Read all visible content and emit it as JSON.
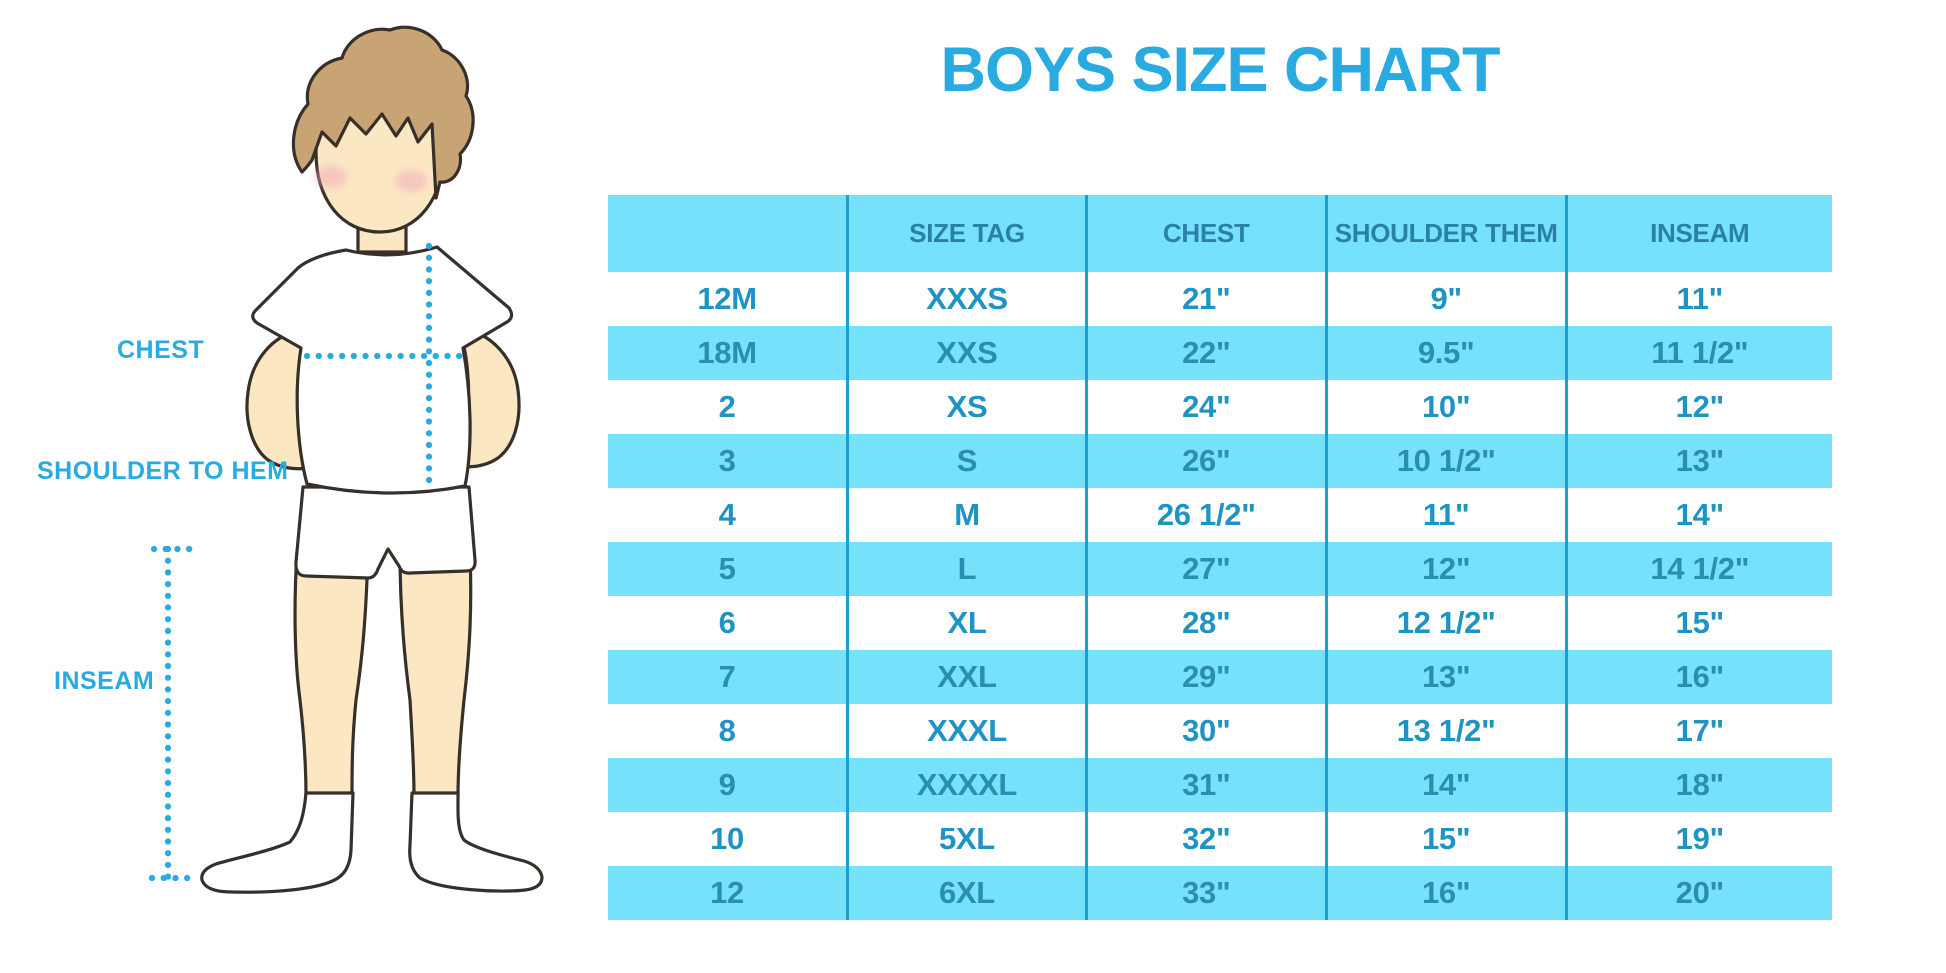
{
  "title": "BOYS SIZE CHART",
  "figure_labels": {
    "chest": "CHEST",
    "shoulder_to_hem": "SHOULDER TO HEM",
    "inseam": "INSEAM"
  },
  "colors": {
    "accent_blue": "#29ABE2",
    "stripe_blue": "#76E1FA",
    "divider_blue": "#1B9FD3",
    "header_text": "#2A80A6",
    "cell_text": "#2093C5",
    "cell_text_stripe": "#2B8DB0",
    "skin": "#FBE8C3",
    "hair": "#C8A474",
    "outline": "#362F2A",
    "cheek": "#F2A9BB"
  },
  "chart_data": {
    "type": "table",
    "title": "BOYS SIZE CHART",
    "columns": [
      "",
      "SIZE TAG",
      "CHEST",
      "SHOULDER THEM",
      "INSEAM"
    ],
    "rows": [
      [
        "12M",
        "XXXS",
        "21\"",
        "9\"",
        "11\""
      ],
      [
        "18M",
        "XXS",
        "22\"",
        "9.5\"",
        "11 1/2\""
      ],
      [
        "2",
        "XS",
        "24\"",
        "10\"",
        "12\""
      ],
      [
        "3",
        "S",
        "26\"",
        "10 1/2\"",
        "13\""
      ],
      [
        "4",
        "M",
        "26 1/2\"",
        "11\"",
        "14\""
      ],
      [
        "5",
        "L",
        "27\"",
        "12\"",
        "14 1/2\""
      ],
      [
        "6",
        "XL",
        "28\"",
        "12 1/2\"",
        "15\""
      ],
      [
        "7",
        "XXL",
        "29\"",
        "13\"",
        "16\""
      ],
      [
        "8",
        "XXXL",
        "30\"",
        "13 1/2\"",
        "17\""
      ],
      [
        "9",
        "XXXXL",
        "31\"",
        "14\"",
        "18\""
      ],
      [
        "10",
        "5XL",
        "32\"",
        "15\"",
        "19\""
      ],
      [
        "12",
        "6XL",
        "33\"",
        "16\"",
        "20\""
      ]
    ],
    "striped_rows": "alternating, starting with second data row",
    "legend_position": "none",
    "grid": "vertical column dividers only"
  }
}
